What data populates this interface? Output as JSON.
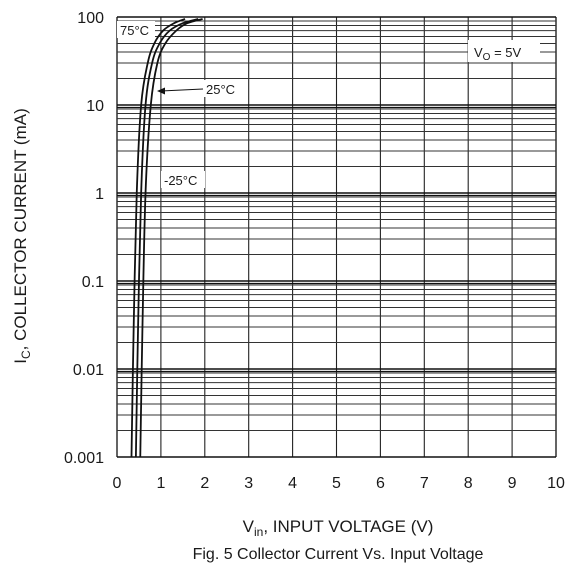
{
  "chart_data": {
    "type": "line",
    "title": "",
    "caption": "Fig. 5  Collector Current Vs. Input Voltage",
    "xlabel": {
      "main": "V",
      "sub": "in",
      "rest": ", INPUT VOLTAGE (V)"
    },
    "ylabel": {
      "main": "I",
      "sub": "C",
      "rest": ", COLLECTOR CURRENT (mA)"
    },
    "xlim": [
      0,
      10
    ],
    "ylim": [
      0.001,
      100
    ],
    "yscale": "log",
    "grid": true,
    "x_ticks": [
      "0",
      "1",
      "2",
      "3",
      "4",
      "5",
      "6",
      "7",
      "8",
      "9",
      "10"
    ],
    "y_ticks": [
      {
        "value": 100,
        "label": "100"
      },
      {
        "value": 10,
        "label": "10"
      },
      {
        "value": 1,
        "label": "1"
      },
      {
        "value": 0.1,
        "label": "0.1"
      },
      {
        "value": 0.01,
        "label": "0.01"
      },
      {
        "value": 0.001,
        "label": "0.001"
      }
    ],
    "condition": {
      "main": "V",
      "sub": "O",
      "rest": " = 5V"
    },
    "series": [
      {
        "name": "75°C",
        "x": [
          0.33,
          0.38,
          0.45,
          0.55,
          0.7,
          0.85,
          1.05,
          1.3,
          1.55
        ],
        "y": [
          0.001,
          0.03,
          1,
          10,
          30,
          50,
          70,
          85,
          95
        ]
      },
      {
        "name": "25°C",
        "x": [
          0.43,
          0.48,
          0.55,
          0.65,
          0.8,
          0.97,
          1.2,
          1.5,
          1.85
        ],
        "y": [
          0.001,
          0.03,
          1,
          10,
          30,
          50,
          70,
          85,
          95
        ]
      },
      {
        "name": "-25°C",
        "x": [
          0.53,
          0.58,
          0.65,
          0.77,
          0.92,
          1.1,
          1.35,
          1.6,
          1.95
        ],
        "y": [
          0.001,
          0.03,
          1,
          10,
          30,
          50,
          70,
          85,
          95
        ]
      }
    ]
  }
}
